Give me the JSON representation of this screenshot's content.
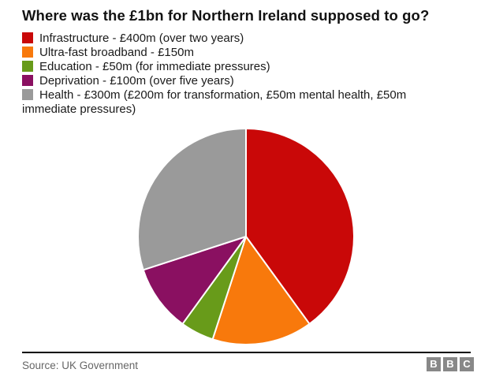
{
  "title": "Where was the £1bn for Northern Ireland supposed to go?",
  "chart_data": {
    "type": "pie",
    "title": "Where was the £1bn for Northern Ireland supposed to go?",
    "unit": "£m",
    "total": 1000,
    "start_angle": "top",
    "direction": "clockwise",
    "legend_position": "top-left",
    "slice_border_color": "#ffffff",
    "slices": [
      {
        "name": "Infrastructure",
        "value": 400,
        "percent": 40,
        "color": "#c90808",
        "label": "Infrastructure - £400m (over two years)"
      },
      {
        "name": "Ultra-fast broadband",
        "value": 150,
        "percent": 15,
        "color": "#f8790c",
        "label": "Ultra-fast broadband - £150m"
      },
      {
        "name": "Education",
        "value": 50,
        "percent": 5,
        "color": "#689b1a",
        "label": "Education - £50m (for immediate pressures)"
      },
      {
        "name": "Deprivation",
        "value": 100,
        "percent": 10,
        "color": "#8a1061",
        "label": "Deprivation - £100m (over five years)"
      },
      {
        "name": "Health",
        "value": 300,
        "percent": 30,
        "color": "#9a9a9a",
        "label": "Health - £300m (£200m for transformation, £50m mental health, £50m immediate pressures)"
      }
    ]
  },
  "footer": {
    "source": "Source: UK Government",
    "logo": {
      "letters": [
        "B",
        "B",
        "C"
      ],
      "color": "#888888"
    }
  }
}
